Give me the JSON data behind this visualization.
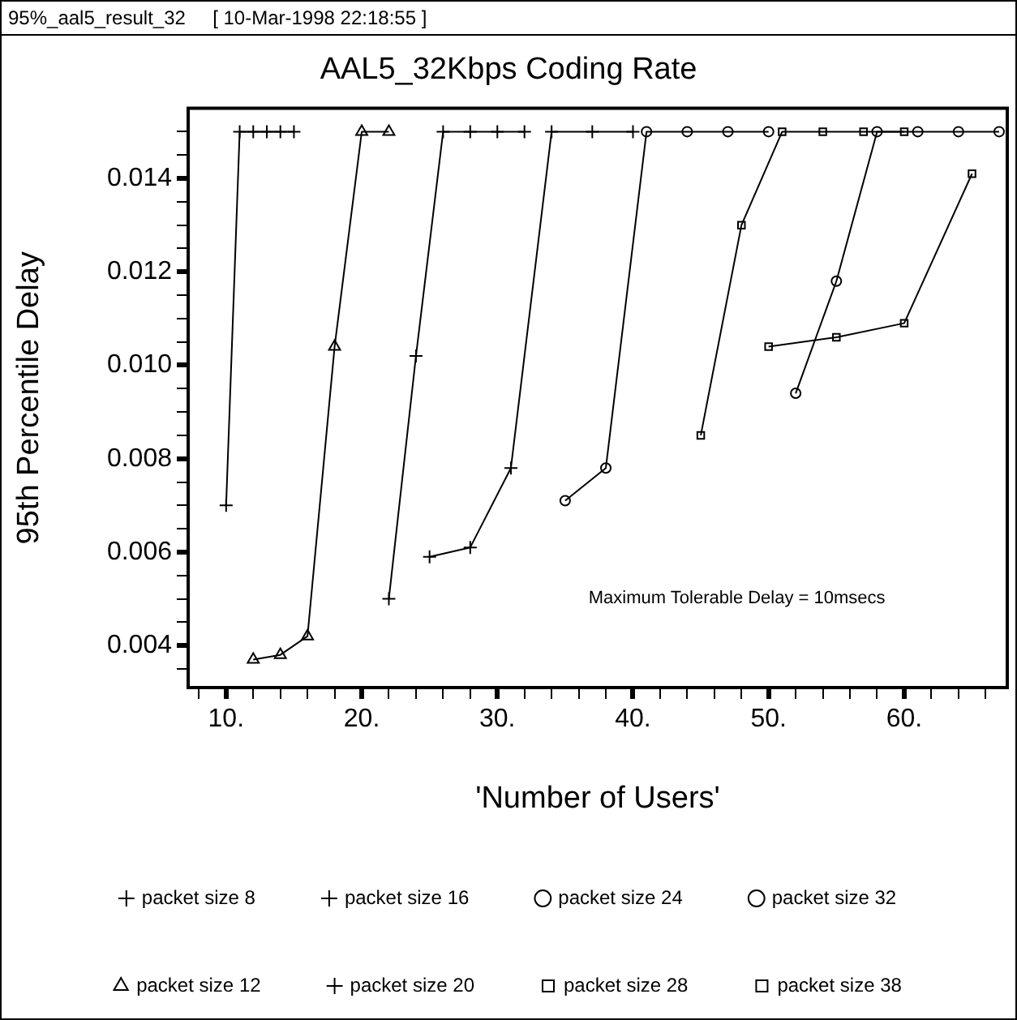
{
  "chart_data": {
    "type": "line",
    "title": "AAL5_32Kbps Coding Rate",
    "xlabel": "'Number of Users'",
    "ylabel": "95th Percentile Delay",
    "annotations": [
      "95%_aal5_result_32     [ 10-Mar-1998 22:18:55 ]",
      "Maximum Tolerable Delay = 10msecs"
    ],
    "xlim": [
      7.2,
      67.6
    ],
    "ylim": [
      0.0031,
      0.0155
    ],
    "xticks": [
      {
        "value": 8,
        "label": null
      },
      {
        "value": 10,
        "label": "10."
      },
      {
        "value": 12,
        "label": null
      },
      {
        "value": 14,
        "label": null
      },
      {
        "value": 16,
        "label": null
      },
      {
        "value": 18,
        "label": null
      },
      {
        "value": 20,
        "label": "20."
      },
      {
        "value": 22,
        "label": null
      },
      {
        "value": 24,
        "label": null
      },
      {
        "value": 26,
        "label": null
      },
      {
        "value": 28,
        "label": null
      },
      {
        "value": 30,
        "label": "30."
      },
      {
        "value": 32,
        "label": null
      },
      {
        "value": 34,
        "label": null
      },
      {
        "value": 36,
        "label": null
      },
      {
        "value": 38,
        "label": null
      },
      {
        "value": 40,
        "label": "40."
      },
      {
        "value": 42,
        "label": null
      },
      {
        "value": 44,
        "label": null
      },
      {
        "value": 46,
        "label": null
      },
      {
        "value": 48,
        "label": null
      },
      {
        "value": 50,
        "label": "50."
      },
      {
        "value": 52,
        "label": null
      },
      {
        "value": 54,
        "label": null
      },
      {
        "value": 56,
        "label": null
      },
      {
        "value": 58,
        "label": null
      },
      {
        "value": 60,
        "label": "60."
      },
      {
        "value": 62,
        "label": null
      },
      {
        "value": 64,
        "label": null
      },
      {
        "value": 66,
        "label": null
      }
    ],
    "yticks": [
      {
        "value": 0.0035,
        "label": null
      },
      0.004,
      {
        "value": 0.0045,
        "label": null
      },
      {
        "value": 0.005,
        "label": null
      },
      {
        "value": 0.0055,
        "label": null
      },
      0.006,
      {
        "value": 0.0065,
        "label": null
      },
      {
        "value": 0.007,
        "label": null
      },
      {
        "value": 0.0075,
        "label": null
      },
      0.008,
      {
        "value": 0.0085,
        "label": null
      },
      {
        "value": 0.009,
        "label": null
      },
      {
        "value": 0.0095,
        "label": null
      },
      {
        "value": 0.01,
        "label": "0.010"
      },
      {
        "value": 0.0105,
        "label": null
      },
      {
        "value": 0.011,
        "label": null
      },
      {
        "value": 0.0115,
        "label": null
      },
      0.012,
      {
        "value": 0.0125,
        "label": null
      },
      {
        "value": 0.013,
        "label": null
      },
      {
        "value": 0.0135,
        "label": null
      },
      0.014,
      {
        "value": 0.0145,
        "label": null
      },
      {
        "value": 0.015,
        "label": null
      }
    ],
    "legend": "bottom",
    "line_style": "solid",
    "series": [
      {
        "name": "packet size 8",
        "color": "#000000",
        "marker": "cross",
        "x": [
          10,
          11,
          12,
          13,
          14,
          15
        ],
        "values": [
          0.007,
          0.015,
          0.015,
          0.015,
          0.015,
          0.015
        ]
      },
      {
        "name": "packet size 16",
        "color": "#000000",
        "marker": "cross",
        "x": [
          22,
          24,
          26,
          28,
          30,
          32
        ],
        "values": [
          0.005,
          0.0102,
          0.015,
          0.015,
          0.015,
          0.015
        ]
      },
      {
        "name": "packet size 24",
        "color": "#000000",
        "marker": "circle",
        "x": [
          35,
          38,
          41,
          44,
          47,
          50
        ],
        "values": [
          0.0071,
          0.0078,
          0.015,
          0.015,
          0.015,
          0.015
        ]
      },
      {
        "name": "packet size 32",
        "color": "#000000",
        "marker": "circle",
        "x": [
          52,
          55,
          58,
          61,
          64,
          67
        ],
        "values": [
          0.0094,
          0.0118,
          0.015,
          0.015,
          0.015,
          0.015
        ]
      },
      {
        "name": "packet size 12",
        "color": "#000000",
        "marker": "triangle",
        "x": [
          12,
          14,
          16,
          18,
          20,
          22
        ],
        "values": [
          0.0037,
          0.0038,
          0.0042,
          0.0104,
          0.015,
          0.015
        ]
      },
      {
        "name": "packet size 20",
        "color": "#000000",
        "marker": "cross",
        "x": [
          25,
          28,
          31,
          34,
          37,
          40
        ],
        "values": [
          0.0059,
          0.0061,
          0.0078,
          0.015,
          0.015,
          0.015
        ]
      },
      {
        "name": "packet size 28",
        "color": "#000000",
        "marker": "square",
        "x": [
          45,
          48,
          51,
          54,
          57,
          60
        ],
        "values": [
          0.0085,
          0.013,
          0.015,
          0.015,
          0.015,
          0.015
        ]
      },
      {
        "name": "packet size 38",
        "color": "#000000",
        "marker": "square",
        "x": [
          50,
          55,
          60,
          65
        ],
        "values": [
          0.0104,
          0.0106,
          0.0109,
          0.0141
        ]
      }
    ]
  }
}
